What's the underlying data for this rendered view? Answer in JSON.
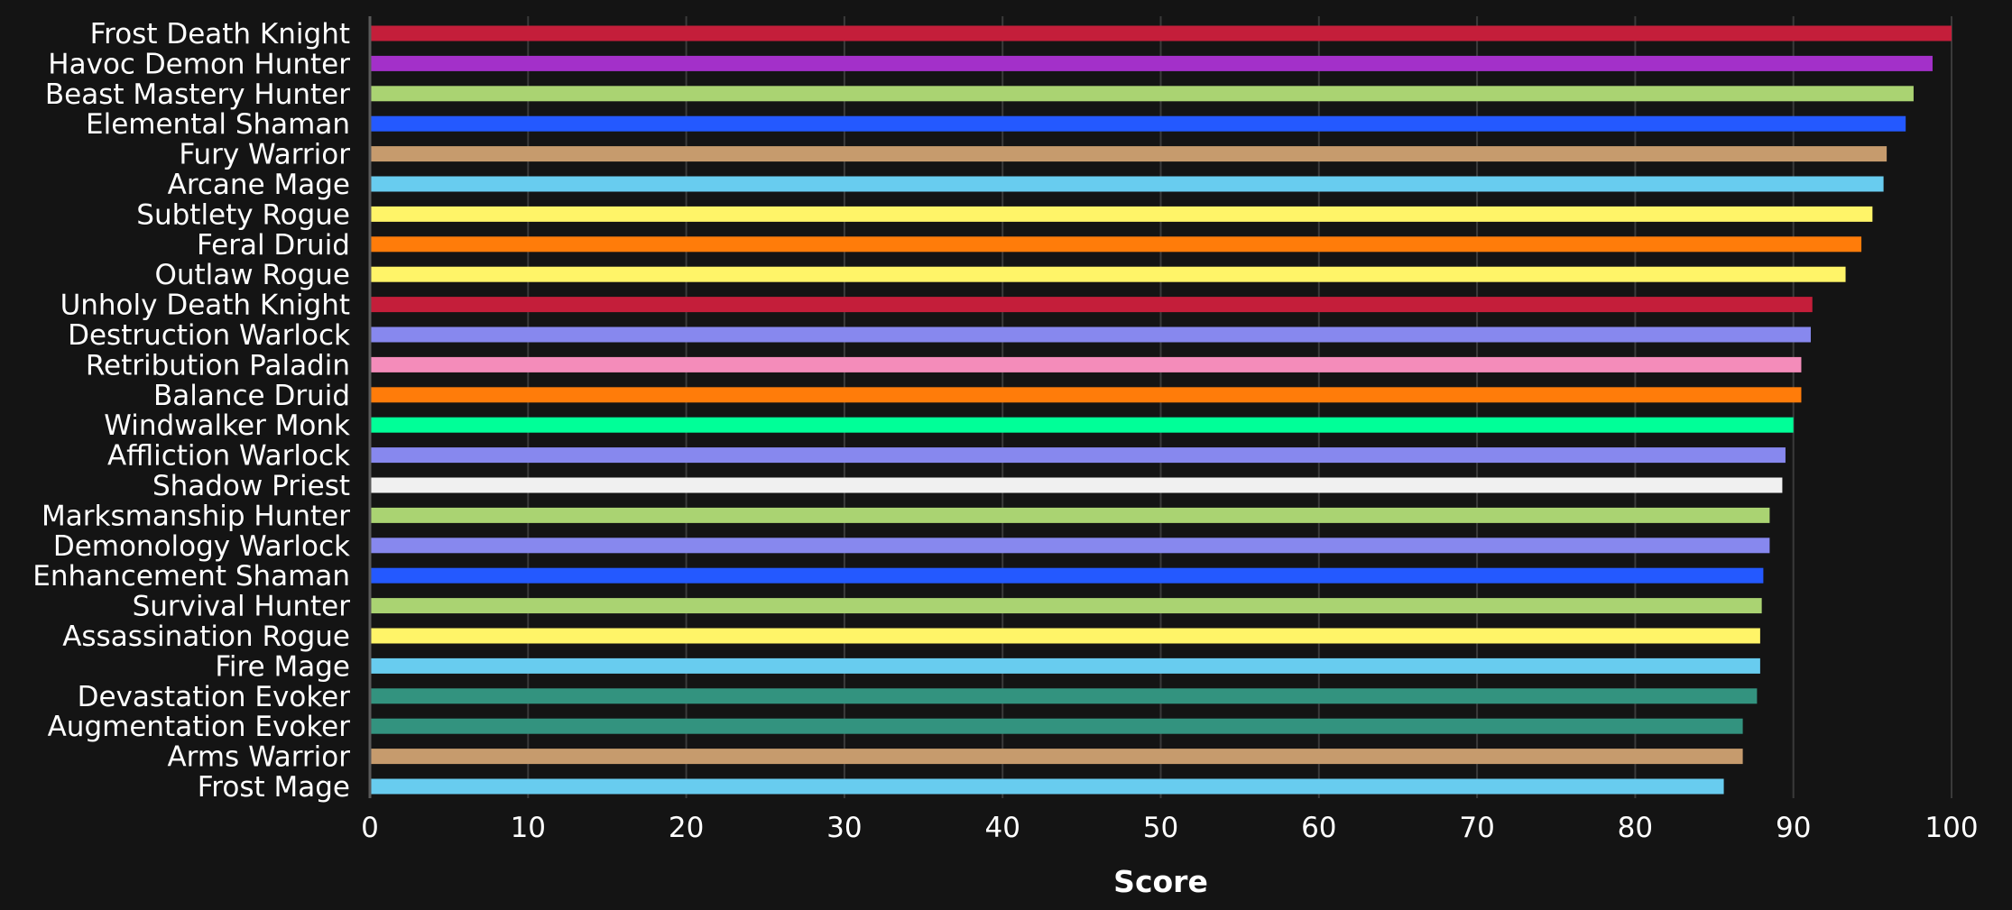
{
  "chart_data": {
    "type": "bar",
    "orientation": "horizontal",
    "title": "",
    "xlabel": "Score",
    "ylabel": "",
    "xlim": [
      0,
      100
    ],
    "x_ticks": [
      0,
      10,
      20,
      30,
      40,
      50,
      60,
      70,
      80,
      90,
      100
    ],
    "grid": true,
    "legend": "none",
    "background": "#141414",
    "categories": [
      "Frost Death Knight",
      "Havoc Demon Hunter",
      "Beast Mastery Hunter",
      "Elemental Shaman",
      "Fury Warrior",
      "Arcane Mage",
      "Subtlety Rogue",
      "Feral Druid",
      "Outlaw Rogue",
      "Unholy Death Knight",
      "Destruction Warlock",
      "Retribution Paladin",
      "Balance Druid",
      "Windwalker Monk",
      "Affliction Warlock",
      "Shadow Priest",
      "Marksmanship Hunter",
      "Demonology Warlock",
      "Enhancement Shaman",
      "Survival Hunter",
      "Assassination Rogue",
      "Fire Mage",
      "Devastation Evoker",
      "Augmentation Evoker",
      "Arms Warrior",
      "Frost Mage"
    ],
    "values": [
      100,
      98.8,
      97.6,
      97.1,
      95.9,
      95.7,
      95.0,
      94.3,
      93.3,
      91.2,
      91.1,
      90.5,
      90.5,
      90.0,
      89.5,
      89.3,
      88.5,
      88.5,
      88.1,
      88.0,
      87.9,
      87.9,
      87.7,
      86.8,
      86.8,
      85.6
    ],
    "colors": [
      "#c41e3a",
      "#a330c9",
      "#aad372",
      "#2459ff",
      "#c69b6d",
      "#68ccef",
      "#fff468",
      "#ff7c0a",
      "#fff468",
      "#c41e3a",
      "#8788ee",
      "#f48cba",
      "#ff7c0a",
      "#00ff98",
      "#8788ee",
      "#f0f0f0",
      "#aad372",
      "#8788ee",
      "#2459ff",
      "#aad372",
      "#fff468",
      "#68ccef",
      "#33937f",
      "#33937f",
      "#c69b6d",
      "#68ccef"
    ]
  }
}
